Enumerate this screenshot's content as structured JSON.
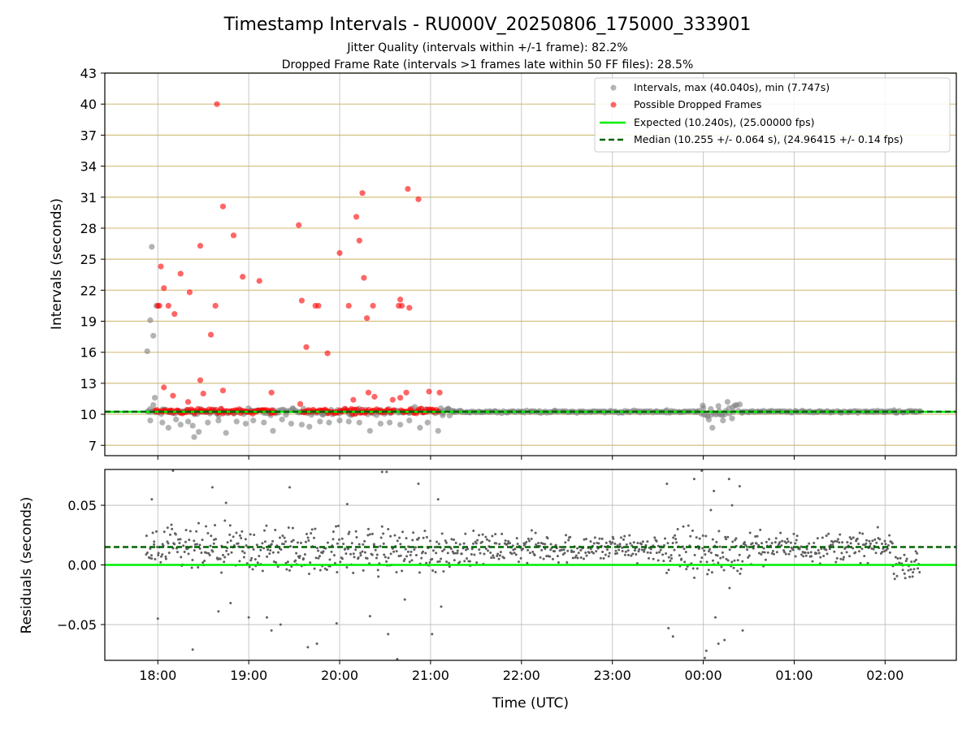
{
  "figure": {
    "title": "Timestamp Intervals - RU000V_20250806_175000_333901",
    "subtitle_1": "Jitter Quality (intervals within +/-1 frame): 82.2%",
    "subtitle_2": "Dropped Frame Rate (intervals >1 frames late within 50 FF files): 28.5%"
  },
  "chart_data": [
    {
      "type": "scatter",
      "panel": "intervals",
      "ylabel": "Intervals (seconds)",
      "xlabel": "",
      "ylim": [
        6,
        43
      ],
      "xlim": [
        "17:25",
        "02:47"
      ],
      "yticks": [
        "7",
        "10",
        "13",
        "16",
        "19",
        "22",
        "25",
        "28",
        "31",
        "34",
        "37",
        "40",
        "43"
      ],
      "horizontal_grid_color": "#d4bf80",
      "legend_position": "top-right",
      "legend": [
        "Intervals, max (40.040s), min (7.747s)",
        "Possible Dropped Frames",
        "Expected (10.240s), (25.00000 fps)",
        "Median (10.255 +/- 0.064 s), (24.96415 +/- 0.14 fps)"
      ],
      "series": [
        {
          "name": "Intervals, max (40.040s), min (7.747s)",
          "color": "#808080",
          "points": [
            [
              "17:53",
              16.1
            ],
            [
              "17:55",
              19.1
            ],
            [
              "17:56",
              26.2
            ],
            [
              "17:57",
              17.6
            ],
            [
              "17:59",
              20.5
            ],
            [
              "17:58",
              11.6
            ],
            [
              "17:57",
              10.9
            ],
            [
              "17:55",
              9.4
            ],
            [
              "18:03",
              9.2
            ],
            [
              "18:07",
              8.7
            ],
            [
              "18:12",
              9.5
            ],
            [
              "18:15",
              9.0
            ],
            [
              "18:20",
              9.3
            ],
            [
              "18:23",
              8.9
            ],
            [
              "18:24",
              7.8
            ],
            [
              "18:27",
              8.3
            ],
            [
              "18:33",
              9.2
            ],
            [
              "18:40",
              9.4
            ],
            [
              "18:45",
              8.2
            ],
            [
              "18:52",
              9.3
            ],
            [
              "18:58",
              9.1
            ],
            [
              "19:03",
              9.4
            ],
            [
              "19:10",
              9.2
            ],
            [
              "19:16",
              8.4
            ],
            [
              "19:22",
              9.5
            ],
            [
              "19:28",
              9.1
            ],
            [
              "19:35",
              9.0
            ],
            [
              "19:40",
              8.8
            ],
            [
              "19:47",
              9.3
            ],
            [
              "19:53",
              9.2
            ],
            [
              "20:00",
              9.4
            ],
            [
              "20:06",
              9.3
            ],
            [
              "20:13",
              9.2
            ],
            [
              "20:20",
              8.4
            ],
            [
              "20:27",
              9.1
            ],
            [
              "20:33",
              9.2
            ],
            [
              "20:40",
              9.0
            ],
            [
              "20:46",
              9.4
            ],
            [
              "20:53",
              8.7
            ],
            [
              "20:58",
              9.2
            ],
            [
              "21:05",
              8.4
            ],
            [
              "21:08",
              9.9
            ],
            [
              "21:12",
              10.5
            ],
            [
              "21:15",
              10.2
            ],
            [
              "23:36",
              10.4
            ],
            [
              "00:00",
              10.6
            ],
            [
              "00:03",
              9.8
            ],
            [
              "00:06",
              8.7
            ],
            [
              "00:10",
              10.8
            ],
            [
              "00:13",
              9.4
            ],
            [
              "00:16",
              11.2
            ],
            [
              "00:19",
              9.6
            ],
            [
              "00:22",
              10.9
            ],
            [
              "02:06",
              10.4
            ],
            [
              "02:20",
              10.3
            ]
          ],
          "continuous_segments": [
            {
              "x_start": "17:52",
              "x_end": "21:15",
              "y_center": 10.25,
              "y_spread": 0.5
            },
            {
              "x_start": "21:15",
              "x_end": "23:58",
              "y_center": 10.25,
              "y_spread": 0.15
            },
            {
              "x_start": "23:58",
              "x_end": "00:25",
              "y_center": 10.25,
              "y_spread": 0.9
            },
            {
              "x_start": "00:25",
              "x_end": "02:23",
              "y_center": 10.25,
              "y_spread": 0.15
            }
          ]
        },
        {
          "name": "Possible Dropped Frames",
          "color": "#ff0000",
          "points": [
            [
              "18:00",
              20.5
            ],
            [
              "18:01",
              20.5
            ],
            [
              "18:02",
              24.3
            ],
            [
              "18:04",
              22.2
            ],
            [
              "18:07",
              20.5
            ],
            [
              "18:11",
              19.7
            ],
            [
              "18:15",
              23.6
            ],
            [
              "18:21",
              21.8
            ],
            [
              "18:28",
              26.3
            ],
            [
              "18:35",
              17.7
            ],
            [
              "18:38",
              20.5
            ],
            [
              "18:39",
              40.0
            ],
            [
              "18:43",
              30.1
            ],
            [
              "18:50",
              27.3
            ],
            [
              "18:56",
              23.3
            ],
            [
              "19:07",
              22.9
            ],
            [
              "19:33",
              28.3
            ],
            [
              "19:35",
              21.0
            ],
            [
              "19:38",
              16.5
            ],
            [
              "19:44",
              20.5
            ],
            [
              "19:46",
              20.5
            ],
            [
              "19:52",
              15.9
            ],
            [
              "20:00",
              25.6
            ],
            [
              "20:06",
              20.5
            ],
            [
              "20:11",
              29.1
            ],
            [
              "20:13",
              26.8
            ],
            [
              "20:15",
              31.4
            ],
            [
              "20:16",
              23.2
            ],
            [
              "20:18",
              19.3
            ],
            [
              "20:22",
              20.5
            ],
            [
              "20:39",
              20.5
            ],
            [
              "20:40",
              21.1
            ],
            [
              "20:41",
              20.5
            ],
            [
              "20:46",
              20.3
            ],
            [
              "20:45",
              31.8
            ],
            [
              "20:52",
              30.8
            ],
            [
              "18:04",
              12.6
            ],
            [
              "18:10",
              11.8
            ],
            [
              "18:20",
              11.2
            ],
            [
              "18:28",
              13.3
            ],
            [
              "18:30",
              12.0
            ],
            [
              "18:43",
              12.3
            ],
            [
              "19:15",
              12.1
            ],
            [
              "19:34",
              11.0
            ],
            [
              "20:09",
              11.4
            ],
            [
              "20:19",
              12.1
            ],
            [
              "20:23",
              11.7
            ],
            [
              "20:35",
              11.4
            ],
            [
              "20:44",
              12.1
            ],
            [
              "20:59",
              12.2
            ],
            [
              "21:06",
              12.1
            ],
            [
              "20:40",
              11.6
            ]
          ],
          "continuous_segments": [
            {
              "x_start": "17:58",
              "x_end": "19:18",
              "y_center": 10.3,
              "y_spread": 0.35
            },
            {
              "x_start": "19:35",
              "x_end": "20:36",
              "y_center": 10.3,
              "y_spread": 0.35
            },
            {
              "x_start": "20:40",
              "x_end": "21:05",
              "y_center": 10.3,
              "y_spread": 0.35
            }
          ]
        }
      ],
      "reference_lines": [
        {
          "name": "Expected (10.240s), (25.00000 fps)",
          "y": 10.24,
          "color": "#00ee00",
          "style": "solid"
        },
        {
          "name": "Median (10.255 +/- 0.064 s), (24.96415 +/- 0.14 fps)",
          "y": 10.255,
          "color": "#006400",
          "style": "dashed"
        }
      ]
    },
    {
      "type": "scatter",
      "panel": "residuals",
      "ylabel": "Residuals (seconds)",
      "xlabel": "Time (UTC)",
      "ylim": [
        -0.08,
        0.08
      ],
      "yticks": [
        "−0.05",
        "0.00",
        "0.05"
      ],
      "xlim": [
        "17:25",
        "02:47"
      ],
      "xticks": [
        "18:00",
        "19:00",
        "20:00",
        "21:00",
        "22:00",
        "23:00",
        "00:00",
        "01:00",
        "02:00"
      ],
      "series": [
        {
          "name": "Residuals",
          "color": "#606060",
          "points": [
            [
              "17:56",
              0.055
            ],
            [
              "18:00",
              -0.045
            ],
            [
              "18:23",
              -0.071
            ],
            [
              "18:36",
              0.065
            ],
            [
              "18:40",
              -0.039
            ],
            [
              "18:45",
              0.052
            ],
            [
              "18:48",
              -0.032
            ],
            [
              "19:00",
              -0.044
            ],
            [
              "19:12",
              -0.044
            ],
            [
              "19:15",
              -0.055
            ],
            [
              "19:21",
              -0.05
            ],
            [
              "19:27",
              0.065
            ],
            [
              "19:39",
              -0.069
            ],
            [
              "19:45",
              -0.066
            ],
            [
              "19:58",
              -0.049
            ],
            [
              "20:05",
              0.051
            ],
            [
              "20:20",
              -0.043
            ],
            [
              "20:28",
              0.078
            ],
            [
              "20:31",
              0.078
            ],
            [
              "20:32",
              -0.058
            ],
            [
              "20:38",
              -0.079
            ],
            [
              "20:43",
              -0.029
            ],
            [
              "20:52",
              0.068
            ],
            [
              "21:01",
              -0.058
            ],
            [
              "21:05",
              0.055
            ],
            [
              "21:07",
              -0.035
            ],
            [
              "18:10",
              0.079
            ],
            [
              "23:36",
              0.068
            ],
            [
              "23:37",
              -0.053
            ],
            [
              "23:40",
              -0.06
            ],
            [
              "23:54",
              0.072
            ],
            [
              "23:59",
              0.079
            ],
            [
              "00:01",
              -0.078
            ],
            [
              "00:02",
              -0.072
            ],
            [
              "00:07",
              0.062
            ],
            [
              "00:05",
              0.046
            ],
            [
              "00:10",
              -0.066
            ],
            [
              "00:14",
              -0.063
            ],
            [
              "00:17",
              0.072
            ],
            [
              "00:24",
              0.066
            ],
            [
              "00:26",
              -0.055
            ],
            [
              "00:19",
              0.05
            ],
            [
              "00:08",
              -0.044
            ]
          ],
          "noise_segments": [
            {
              "x_start": "17:52",
              "x_end": "21:15",
              "center": 0.012,
              "spread": 0.03
            },
            {
              "x_start": "21:15",
              "x_end": "23:35",
              "center": 0.014,
              "spread": 0.018
            },
            {
              "x_start": "23:35",
              "x_end": "00:30",
              "center": 0.01,
              "spread": 0.035
            },
            {
              "x_start": "00:30",
              "x_end": "02:05",
              "center": 0.015,
              "spread": 0.018
            },
            {
              "x_start": "02:05",
              "x_end": "02:23",
              "center": 0.0,
              "spread": 0.015
            }
          ]
        }
      ],
      "reference_lines": [
        {
          "y": 0.0,
          "color": "#00ee00",
          "style": "solid"
        },
        {
          "y": 0.015,
          "color": "#006400",
          "style": "dashed"
        }
      ]
    }
  ]
}
